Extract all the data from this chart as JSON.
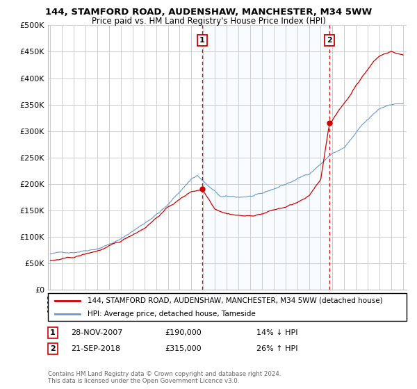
{
  "title": "144, STAMFORD ROAD, AUDENSHAW, MANCHESTER, M34 5WW",
  "subtitle": "Price paid vs. HM Land Registry's House Price Index (HPI)",
  "red_label": "144, STAMFORD ROAD, AUDENSHAW, MANCHESTER, M34 5WW (detached house)",
  "blue_label": "HPI: Average price, detached house, Tameside",
  "annotation1": {
    "num": "1",
    "date": "28-NOV-2007",
    "price": "£190,000",
    "pct": "14% ↓ HPI",
    "x_year": 2007.92
  },
  "annotation2": {
    "num": "2",
    "date": "21-SEP-2018",
    "price": "£315,000",
    "pct": "26% ↑ HPI",
    "x_year": 2018.72
  },
  "sale1_value": 190000,
  "sale2_value": 315000,
  "footer": "Contains HM Land Registry data © Crown copyright and database right 2024.\nThis data is licensed under the Open Government Licence v3.0.",
  "ylim": [
    0,
    500000
  ],
  "yticks": [
    0,
    50000,
    100000,
    150000,
    200000,
    250000,
    300000,
    350000,
    400000,
    450000,
    500000
  ],
  "ytick_labels": [
    "£0",
    "£50K",
    "£100K",
    "£150K",
    "£200K",
    "£250K",
    "£300K",
    "£350K",
    "£400K",
    "£450K",
    "£500K"
  ],
  "red_color": "#cc0000",
  "blue_color": "#6699cc",
  "shade_color": "#ddeeff",
  "dashed_color": "#cc0000",
  "background_color": "#ffffff",
  "grid_color": "#cccccc",
  "xlim_left": 1995.0,
  "xlim_right": 2025.3
}
